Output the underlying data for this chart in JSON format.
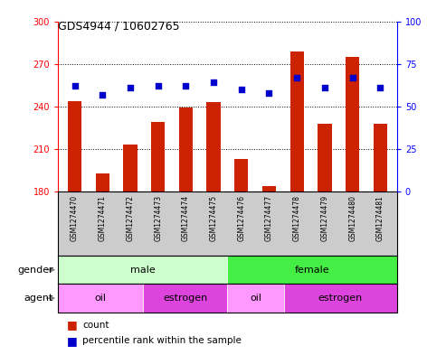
{
  "title": "GDS4944 / 10602765",
  "samples": [
    "GSM1274470",
    "GSM1274471",
    "GSM1274472",
    "GSM1274473",
    "GSM1274474",
    "GSM1274475",
    "GSM1274476",
    "GSM1274477",
    "GSM1274478",
    "GSM1274479",
    "GSM1274480",
    "GSM1274481"
  ],
  "counts": [
    244,
    193,
    213,
    229,
    239,
    243,
    203,
    184,
    279,
    228,
    275,
    228
  ],
  "percentile_ranks": [
    62,
    57,
    61,
    62,
    62,
    64,
    60,
    58,
    67,
    61,
    67,
    61
  ],
  "ylim_left": [
    180,
    300
  ],
  "ylim_right": [
    0,
    100
  ],
  "yticks_left": [
    180,
    210,
    240,
    270,
    300
  ],
  "yticks_right": [
    0,
    25,
    50,
    75,
    100
  ],
  "bar_color": "#cc2200",
  "dot_color": "#0000cc",
  "grid_color": "#000000",
  "bg_color": "#ffffff",
  "plot_bg": "#ffffff",
  "sample_bg": "#cccccc",
  "gender_groups": [
    {
      "label": "male",
      "start": 0,
      "end": 6,
      "color": "#ccffcc"
    },
    {
      "label": "female",
      "start": 6,
      "end": 12,
      "color": "#44ee44"
    }
  ],
  "agent_groups": [
    {
      "label": "oil",
      "start": 0,
      "end": 3,
      "color": "#ff99ff"
    },
    {
      "label": "estrogen",
      "start": 3,
      "end": 6,
      "color": "#dd44dd"
    },
    {
      "label": "oil",
      "start": 6,
      "end": 8,
      "color": "#ff99ff"
    },
    {
      "label": "estrogen",
      "start": 8,
      "end": 12,
      "color": "#dd44dd"
    }
  ]
}
